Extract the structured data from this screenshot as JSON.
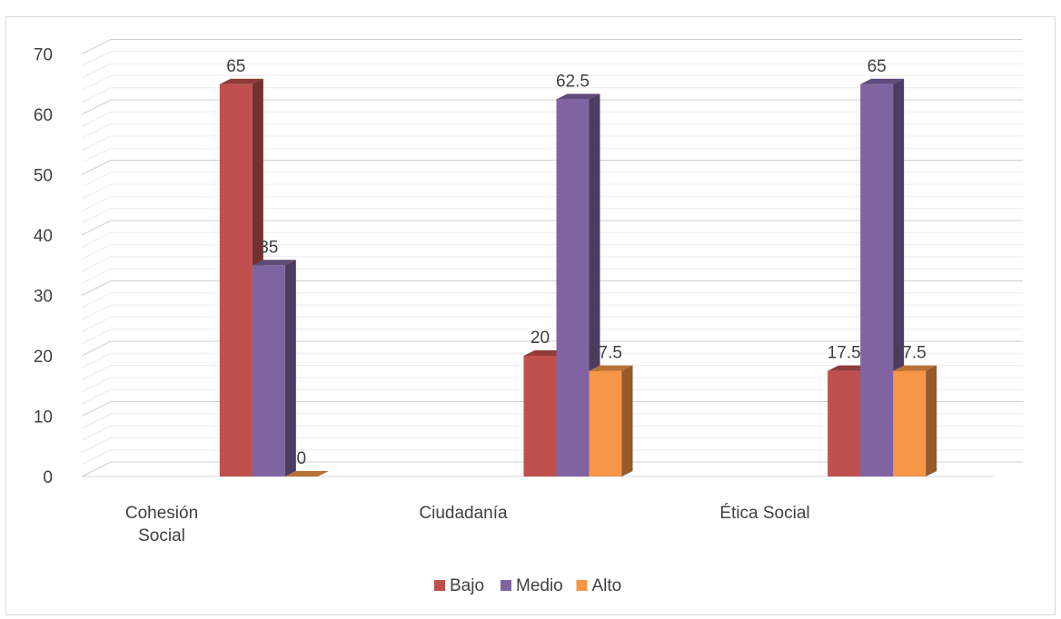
{
  "chart_data": {
    "type": "bar",
    "categories": [
      "Cohesión Social",
      "Ciudadanía",
      "Ética Social"
    ],
    "series": [
      {
        "name": "Bajo",
        "values": [
          65,
          20,
          17.5
        ],
        "color": "#c0504d"
      },
      {
        "name": "Medio",
        "values": [
          35,
          62.5,
          65
        ],
        "color": "#8064a2"
      },
      {
        "name": "Alto",
        "values": [
          0,
          17.5,
          17.5
        ],
        "color": "#f79646"
      }
    ],
    "data_labels": [
      [
        "65",
        "20",
        "17.5"
      ],
      [
        "35",
        "62.5",
        "65"
      ],
      [
        "0",
        "17.5",
        "17.5"
      ]
    ],
    "yticks": [
      "0",
      "10",
      "20",
      "30",
      "40",
      "50",
      "60",
      "70"
    ],
    "ylim": [
      0,
      70
    ],
    "title": "",
    "xlabel": "",
    "ylabel": "",
    "legend_position": "bottom",
    "grid": true,
    "style": "3d-clustered-column"
  }
}
